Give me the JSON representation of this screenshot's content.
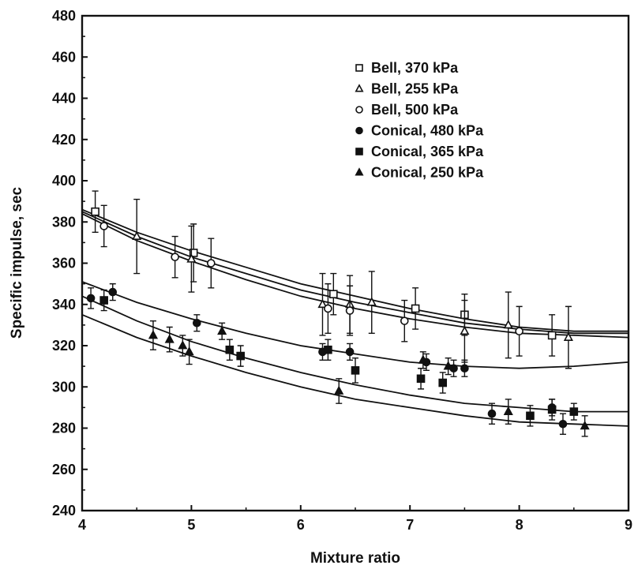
{
  "chart_data": {
    "type": "scatter",
    "title": "",
    "xlabel": "Mixture ratio",
    "ylabel": "Specific impulse, sec",
    "xlim": [
      4,
      9
    ],
    "ylim": [
      240,
      480
    ],
    "xticks": [
      "4",
      "5",
      "6",
      "7",
      "8",
      "9"
    ],
    "yticks": [
      "240",
      "260",
      "280",
      "300",
      "320",
      "340",
      "360",
      "380",
      "400",
      "420",
      "440",
      "460",
      "480"
    ],
    "grid": false,
    "legend_position": "top-right",
    "colors": {
      "ink": "#111111",
      "background": "#ffffff"
    },
    "series": [
      {
        "name": "Bell, 370 kPa",
        "marker": "square-open",
        "points": [
          {
            "x": 4.12,
            "y": 385,
            "err": 10
          },
          {
            "x": 5.02,
            "y": 365,
            "err": 14
          },
          {
            "x": 6.3,
            "y": 345,
            "err": 10
          },
          {
            "x": 7.05,
            "y": 338,
            "err": 10
          },
          {
            "x": 7.5,
            "y": 335,
            "err": 10
          },
          {
            "x": 8.3,
            "y": 325,
            "err": 10
          }
        ]
      },
      {
        "name": "Bell, 255 kPa",
        "marker": "triangle-open",
        "points": [
          {
            "x": 4.5,
            "y": 373,
            "err": 18
          },
          {
            "x": 5.0,
            "y": 362,
            "err": 16
          },
          {
            "x": 6.2,
            "y": 340,
            "err": 15
          },
          {
            "x": 6.45,
            "y": 340,
            "err": 14
          },
          {
            "x": 6.65,
            "y": 341,
            "err": 15
          },
          {
            "x": 7.5,
            "y": 327,
            "err": 15
          },
          {
            "x": 7.9,
            "y": 330,
            "err": 16
          },
          {
            "x": 8.45,
            "y": 324,
            "err": 15
          }
        ]
      },
      {
        "name": "Bell, 500 kPa",
        "marker": "circle-open",
        "points": [
          {
            "x": 4.2,
            "y": 378,
            "err": 10
          },
          {
            "x": 4.85,
            "y": 363,
            "err": 10
          },
          {
            "x": 5.18,
            "y": 360,
            "err": 12
          },
          {
            "x": 6.25,
            "y": 338,
            "err": 12
          },
          {
            "x": 6.45,
            "y": 337,
            "err": 12
          },
          {
            "x": 6.95,
            "y": 332,
            "err": 10
          },
          {
            "x": 8.0,
            "y": 327,
            "err": 12
          }
        ]
      },
      {
        "name": "Conical, 480 kPa",
        "marker": "circle-filled",
        "points": [
          {
            "x": 4.08,
            "y": 343,
            "err": 5
          },
          {
            "x": 4.28,
            "y": 346,
            "err": 4
          },
          {
            "x": 5.05,
            "y": 331,
            "err": 4
          },
          {
            "x": 6.2,
            "y": 317,
            "err": 4
          },
          {
            "x": 6.45,
            "y": 317,
            "err": 4
          },
          {
            "x": 7.15,
            "y": 312,
            "err": 4
          },
          {
            "x": 7.4,
            "y": 309,
            "err": 4
          },
          {
            "x": 7.5,
            "y": 309,
            "err": 4
          },
          {
            "x": 7.75,
            "y": 287,
            "err": 5
          },
          {
            "x": 8.3,
            "y": 290,
            "err": 4
          },
          {
            "x": 8.4,
            "y": 282,
            "err": 5
          }
        ]
      },
      {
        "name": "Conical, 365 kPa",
        "marker": "square-filled",
        "points": [
          {
            "x": 4.2,
            "y": 342,
            "err": 5
          },
          {
            "x": 5.35,
            "y": 318,
            "err": 5
          },
          {
            "x": 5.45,
            "y": 315,
            "err": 5
          },
          {
            "x": 6.25,
            "y": 318,
            "err": 5
          },
          {
            "x": 6.5,
            "y": 308,
            "err": 6
          },
          {
            "x": 7.1,
            "y": 304,
            "err": 5
          },
          {
            "x": 7.3,
            "y": 302,
            "err": 5
          },
          {
            "x": 8.1,
            "y": 286,
            "err": 5
          },
          {
            "x": 8.3,
            "y": 289,
            "err": 5
          },
          {
            "x": 8.5,
            "y": 288,
            "err": 4
          }
        ]
      },
      {
        "name": "Conical, 250 kPa",
        "marker": "triangle-filled",
        "points": [
          {
            "x": 4.65,
            "y": 325,
            "err": 7
          },
          {
            "x": 4.8,
            "y": 323,
            "err": 6
          },
          {
            "x": 4.92,
            "y": 320,
            "err": 5
          },
          {
            "x": 4.98,
            "y": 317,
            "err": 6
          },
          {
            "x": 5.28,
            "y": 327,
            "err": 4
          },
          {
            "x": 6.35,
            "y": 298,
            "err": 6
          },
          {
            "x": 7.12,
            "y": 313,
            "err": 4
          },
          {
            "x": 7.35,
            "y": 310,
            "err": 4
          },
          {
            "x": 7.9,
            "y": 288,
            "err": 6
          },
          {
            "x": 8.6,
            "y": 281,
            "err": 5
          }
        ]
      }
    ],
    "fit_curves": [
      {
        "points": [
          [
            4,
            386
          ],
          [
            4.5,
            375
          ],
          [
            5,
            366
          ],
          [
            5.5,
            358
          ],
          [
            6,
            350
          ],
          [
            6.5,
            344
          ],
          [
            7,
            338
          ],
          [
            7.5,
            333
          ],
          [
            8,
            329
          ],
          [
            8.5,
            327
          ],
          [
            9,
            327
          ]
        ]
      },
      {
        "points": [
          [
            4,
            385
          ],
          [
            4.5,
            373
          ],
          [
            5,
            363
          ],
          [
            5.5,
            355
          ],
          [
            6,
            347
          ],
          [
            6.5,
            341
          ],
          [
            7,
            336
          ],
          [
            7.5,
            331
          ],
          [
            8,
            328
          ],
          [
            8.5,
            326
          ],
          [
            9,
            326
          ]
        ]
      },
      {
        "points": [
          [
            4,
            384
          ],
          [
            4.5,
            371
          ],
          [
            5,
            361
          ],
          [
            5.5,
            352
          ],
          [
            6,
            344
          ],
          [
            6.5,
            338
          ],
          [
            7,
            333
          ],
          [
            7.5,
            329
          ],
          [
            8,
            326
          ],
          [
            8.5,
            325
          ],
          [
            9,
            324
          ]
        ]
      },
      {
        "points": [
          [
            4,
            351
          ],
          [
            4.5,
            341
          ],
          [
            5,
            333
          ],
          [
            5.5,
            326
          ],
          [
            6,
            320
          ],
          [
            6.5,
            316
          ],
          [
            7,
            312
          ],
          [
            7.5,
            310
          ],
          [
            8,
            309
          ],
          [
            8.5,
            310
          ],
          [
            9,
            312
          ]
        ]
      },
      {
        "points": [
          [
            4,
            344
          ],
          [
            4.5,
            332
          ],
          [
            5,
            322
          ],
          [
            5.5,
            314
          ],
          [
            6,
            307
          ],
          [
            6.5,
            301
          ],
          [
            7,
            296
          ],
          [
            7.5,
            292
          ],
          [
            8,
            290
          ],
          [
            8.5,
            288
          ],
          [
            9,
            288
          ]
        ]
      },
      {
        "points": [
          [
            4,
            335
          ],
          [
            4.5,
            324
          ],
          [
            5,
            315
          ],
          [
            5.5,
            307
          ],
          [
            6,
            300
          ],
          [
            6.5,
            294
          ],
          [
            7,
            290
          ],
          [
            7.5,
            286
          ],
          [
            8,
            283
          ],
          [
            8.5,
            282
          ],
          [
            9,
            281
          ]
        ]
      }
    ]
  }
}
